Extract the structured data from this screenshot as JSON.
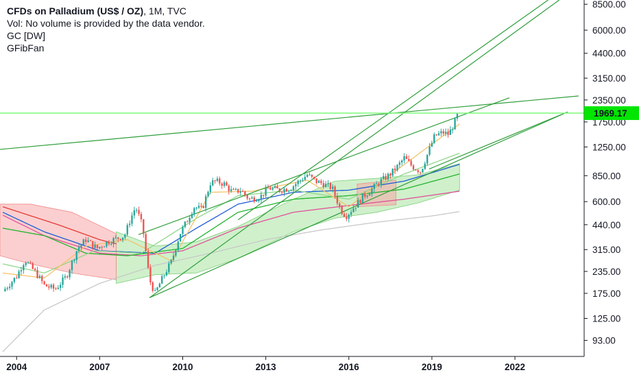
{
  "legend": {
    "title_main": "CFDs on Palladium (US$ / OZ)",
    "title_tail": ", 1M, TVC",
    "volume_note": "Vol: No volume is provided by the data vendor.",
    "indicator_1": "GC [DW]",
    "indicator_2": "GFibFan"
  },
  "colors": {
    "up": "#26a69a",
    "down": "#ef5350",
    "fan": "#2e9e3a",
    "band_green": "#a7e3a0",
    "band_red": "#f7a8a8",
    "price_line": "#7CFC7C",
    "price_tag": "#00e600"
  },
  "chart_data": {
    "type": "candlestick",
    "scale": "log",
    "current_price": "1969.17",
    "y_ticks": [
      "8500.00",
      "6000.00",
      "4400.00",
      "3150.00",
      "2350.00",
      "1750.00",
      "1250.00",
      "850.00",
      "600.00",
      "440.00",
      "315.00",
      "235.00",
      "175.00",
      "125.00",
      "93.00"
    ],
    "x_ticks": [
      "2004",
      "2007",
      "2010",
      "2013",
      "2016",
      "2019",
      "2022"
    ],
    "x_range": [
      2003.4,
      2024.5
    ],
    "y_range": [
      75,
      9000
    ],
    "price_path": [
      [
        2003.5,
        180
      ],
      [
        2004.0,
        220
      ],
      [
        2004.3,
        275
      ],
      [
        2004.7,
        230
      ],
      [
        2005.0,
        195
      ],
      [
        2005.4,
        185
      ],
      [
        2005.8,
        220
      ],
      [
        2006.2,
        320
      ],
      [
        2006.5,
        360
      ],
      [
        2006.9,
        320
      ],
      [
        2007.3,
        350
      ],
      [
        2007.6,
        365
      ],
      [
        2007.9,
        380
      ],
      [
        2008.1,
        470
      ],
      [
        2008.3,
        560
      ],
      [
        2008.55,
        430
      ],
      [
        2008.8,
        210
      ],
      [
        2009.0,
        175
      ],
      [
        2009.3,
        220
      ],
      [
        2009.6,
        270
      ],
      [
        2009.9,
        390
      ],
      [
        2010.2,
        480
      ],
      [
        2010.4,
        560
      ],
      [
        2010.7,
        540
      ],
      [
        2011.0,
        770
      ],
      [
        2011.2,
        790
      ],
      [
        2011.5,
        760
      ],
      [
        2011.8,
        680
      ],
      [
        2012.1,
        700
      ],
      [
        2012.4,
        620
      ],
      [
        2012.8,
        640
      ],
      [
        2013.1,
        720
      ],
      [
        2013.5,
        700
      ],
      [
        2013.9,
        720
      ],
      [
        2014.2,
        790
      ],
      [
        2014.5,
        860
      ],
      [
        2014.8,
        790
      ],
      [
        2015.1,
        760
      ],
      [
        2015.4,
        720
      ],
      [
        2015.7,
        540
      ],
      [
        2015.9,
        495
      ],
      [
        2016.2,
        560
      ],
      [
        2016.5,
        640
      ],
      [
        2016.8,
        700
      ],
      [
        2017.1,
        780
      ],
      [
        2017.5,
        870
      ],
      [
        2017.8,
        980
      ],
      [
        2018.0,
        1080
      ],
      [
        2018.3,
        960
      ],
      [
        2018.6,
        900
      ],
      [
        2018.9,
        1200
      ],
      [
        2019.1,
        1450
      ],
      [
        2019.4,
        1520
      ],
      [
        2019.6,
        1480
      ],
      [
        2019.8,
        1700
      ],
      [
        2019.95,
        1969
      ]
    ],
    "moving_averages": [
      {
        "color": "#c8c8c8",
        "points": [
          [
            2003.5,
            80
          ],
          [
            2005,
            140
          ],
          [
            2007,
            200
          ],
          [
            2009,
            255
          ],
          [
            2011,
            300
          ],
          [
            2013,
            360
          ],
          [
            2015,
            410
          ],
          [
            2017,
            455
          ],
          [
            2019,
            495
          ],
          [
            2020.0,
            525
          ]
        ]
      },
      {
        "color": "#e1509a",
        "points": [
          [
            2003.5,
            500
          ],
          [
            2005,
            380
          ],
          [
            2007,
            300
          ],
          [
            2008.5,
            290
          ],
          [
            2010,
            310
          ],
          [
            2012,
            420
          ],
          [
            2014,
            520
          ],
          [
            2016,
            570
          ],
          [
            2018,
            620
          ],
          [
            2020.0,
            690
          ]
        ]
      },
      {
        "color": "#1e5bd6",
        "points": [
          [
            2003.5,
            520
          ],
          [
            2005,
            400
          ],
          [
            2007,
            310
          ],
          [
            2009,
            300
          ],
          [
            2010.5,
            420
          ],
          [
            2012,
            580
          ],
          [
            2014,
            680
          ],
          [
            2016,
            700
          ],
          [
            2018,
            790
          ],
          [
            2020.0,
            990
          ]
        ]
      },
      {
        "color": "#1fb42c",
        "points": [
          [
            2003.5,
            420
          ],
          [
            2005,
            380
          ],
          [
            2006.5,
            300
          ],
          [
            2008,
            290
          ],
          [
            2010,
            320
          ],
          [
            2012,
            520
          ],
          [
            2014,
            620
          ],
          [
            2016,
            650
          ],
          [
            2018,
            710
          ],
          [
            2020.0,
            870
          ]
        ]
      },
      {
        "color": "#e53935",
        "points": [
          [
            2003.5,
            560
          ],
          [
            2005.5,
            440
          ],
          [
            2007,
            360
          ],
          [
            2007.6,
            340
          ]
        ]
      },
      {
        "color": "#8fd68a",
        "points": [
          [
            2003.5,
            260
          ],
          [
            2005,
            230
          ],
          [
            2006.8,
            310
          ],
          [
            2008.5,
            300
          ],
          [
            2010.5,
            480
          ],
          [
            2012,
            650
          ],
          [
            2014,
            700
          ],
          [
            2016,
            620
          ],
          [
            2018,
            870
          ],
          [
            2020.0,
            1150
          ]
        ]
      },
      {
        "color": "#f4c26b",
        "points": [
          [
            2003.5,
            230
          ],
          [
            2005,
            215
          ],
          [
            2006.5,
            330
          ],
          [
            2008,
            360
          ],
          [
            2009.6,
            270
          ],
          [
            2011,
            680
          ],
          [
            2012.5,
            690
          ],
          [
            2014.5,
            800
          ],
          [
            2016,
            560
          ],
          [
            2017.5,
            860
          ],
          [
            2019,
            1300
          ],
          [
            2020.0,
            1700
          ]
        ]
      }
    ],
    "fan_lines": [
      [
        [
          2003.4,
          1210
        ],
        [
          2024.3,
          2480
        ]
      ],
      [
        [
          2008.4,
          385
        ],
        [
          2021.8,
          2420
        ]
      ],
      [
        [
          2008.8,
          165
        ],
        [
          2023.9,
          2000
        ]
      ],
      [
        [
          2008.8,
          165
        ],
        [
          2023.6,
          9000
        ]
      ],
      [
        [
          2012.0,
          470
        ],
        [
          2023.2,
          9000
        ]
      ],
      [
        [
          2018.9,
          930
        ],
        [
          2023.9,
          2000
        ]
      ]
    ],
    "bands": [
      {
        "color": "green",
        "upper": [
          [
            2007.6,
            400
          ],
          [
            2009,
            330
          ],
          [
            2010.5,
            350
          ],
          [
            2012,
            430
          ],
          [
            2014,
            620
          ],
          [
            2015.5,
            790
          ],
          [
            2017,
            820
          ],
          [
            2018.5,
            860
          ],
          [
            2020.0,
            1000
          ]
        ],
        "lower": [
          [
            2007.6,
            200
          ],
          [
            2009,
            225
          ],
          [
            2010.5,
            230
          ],
          [
            2012,
            280
          ],
          [
            2014,
            400
          ],
          [
            2015.5,
            480
          ],
          [
            2017,
            520
          ],
          [
            2018.5,
            590
          ],
          [
            2020.0,
            700
          ]
        ]
      },
      {
        "color": "red",
        "upper": [
          [
            2003.4,
            580
          ],
          [
            2004.5,
            580
          ],
          [
            2006,
            520
          ],
          [
            2007.6,
            390
          ]
        ],
        "lower": [
          [
            2003.4,
            290
          ],
          [
            2004.5,
            260
          ],
          [
            2006,
            230
          ],
          [
            2007.6,
            210
          ]
        ]
      },
      {
        "color": "red",
        "upper": [
          [
            2016.3,
            760
          ],
          [
            2017.7,
            800
          ]
        ],
        "lower": [
          [
            2016.3,
            560
          ],
          [
            2017.7,
            575
          ]
        ]
      }
    ]
  }
}
